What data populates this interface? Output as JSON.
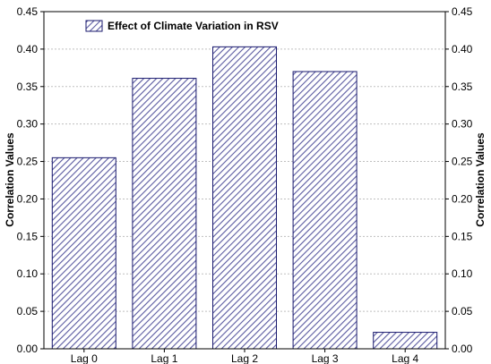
{
  "chart_data": {
    "type": "bar",
    "categories": [
      "Lag 0",
      "Lag 1",
      "Lag 2",
      "Lag 3",
      "Lag 4"
    ],
    "series": [
      {
        "name": "Effect of Climate Variation in RSV",
        "values": [
          0.255,
          0.361,
          0.403,
          0.37,
          0.022
        ]
      }
    ],
    "ylabel": "Correlation Values",
    "ylabel_right": "Correlation Values",
    "ylim": [
      0,
      0.45
    ],
    "yticks": [
      "0.00",
      "0.05",
      "0.10",
      "0.15",
      "0.20",
      "0.25",
      "0.30",
      "0.35",
      "0.40",
      "0.45"
    ],
    "grid": true,
    "legend_position": "top-left",
    "colors": {
      "bar_fill": "#ffffff",
      "hatch": "#5a5aa0",
      "bar_outline": "#1a1a6e",
      "grid": "#bfbfbf",
      "axis": "#000000"
    }
  }
}
